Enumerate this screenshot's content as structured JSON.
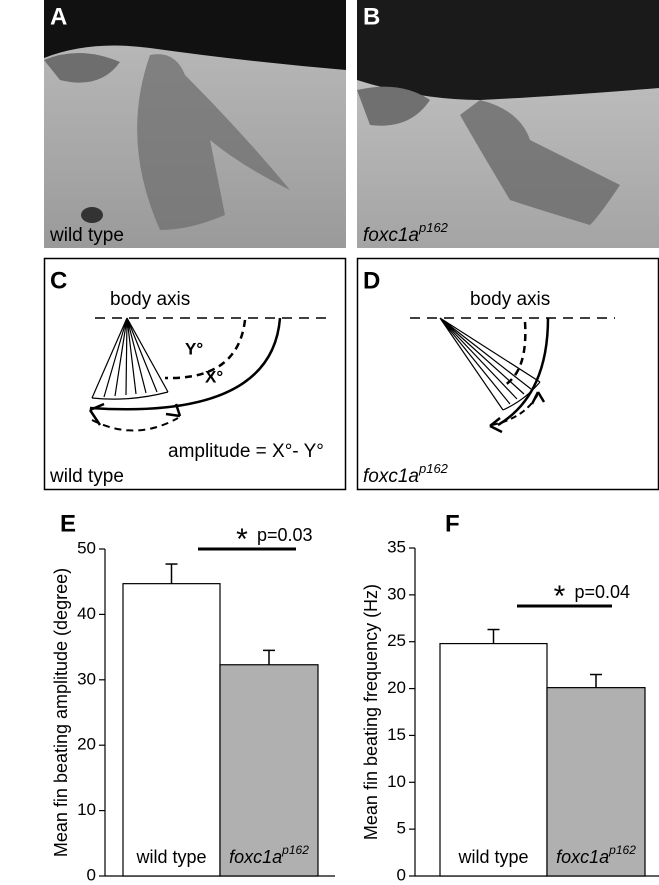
{
  "panels": {
    "A": {
      "letter": "A",
      "label": "wild type"
    },
    "B": {
      "letter": "B",
      "label": "foxc1a",
      "superscript": "p162"
    },
    "C": {
      "letter": "C",
      "axis": "body axis",
      "y_angle": "Y°",
      "x_angle": "X°",
      "formula": "amplitude = X°- Y°",
      "label": "wild type"
    },
    "D": {
      "letter": "D",
      "axis": "body axis",
      "label": "foxc1a",
      "superscript": "p162"
    }
  },
  "chart_data": [
    {
      "type": "bar",
      "letter": "E",
      "ylabel": "Mean fin beating amplitude (degree)",
      "categories": [
        "wild type",
        "foxc1a"
      ],
      "category_superscript": "p162",
      "values": [
        44.7,
        32.3
      ],
      "errors": [
        3.0,
        2.2
      ],
      "colors": [
        "#ffffff",
        "#b0b0b0"
      ],
      "ylim": [
        0,
        50
      ],
      "yticks": [
        0,
        10,
        20,
        30,
        40,
        50
      ],
      "significance": "*",
      "annotation": "p=0.03"
    },
    {
      "type": "bar",
      "letter": "F",
      "ylabel": "Mean fin beating frequency (Hz)",
      "categories": [
        "wild type",
        "foxc1a"
      ],
      "category_superscript": "p162",
      "values": [
        24.8,
        20.1
      ],
      "errors": [
        1.5,
        1.4
      ],
      "colors": [
        "#ffffff",
        "#b0b0b0"
      ],
      "ylim": [
        0,
        35
      ],
      "yticks": [
        0,
        5,
        10,
        15,
        20,
        25,
        30,
        35
      ],
      "significance": "*",
      "annotation": "p=0.04"
    }
  ]
}
